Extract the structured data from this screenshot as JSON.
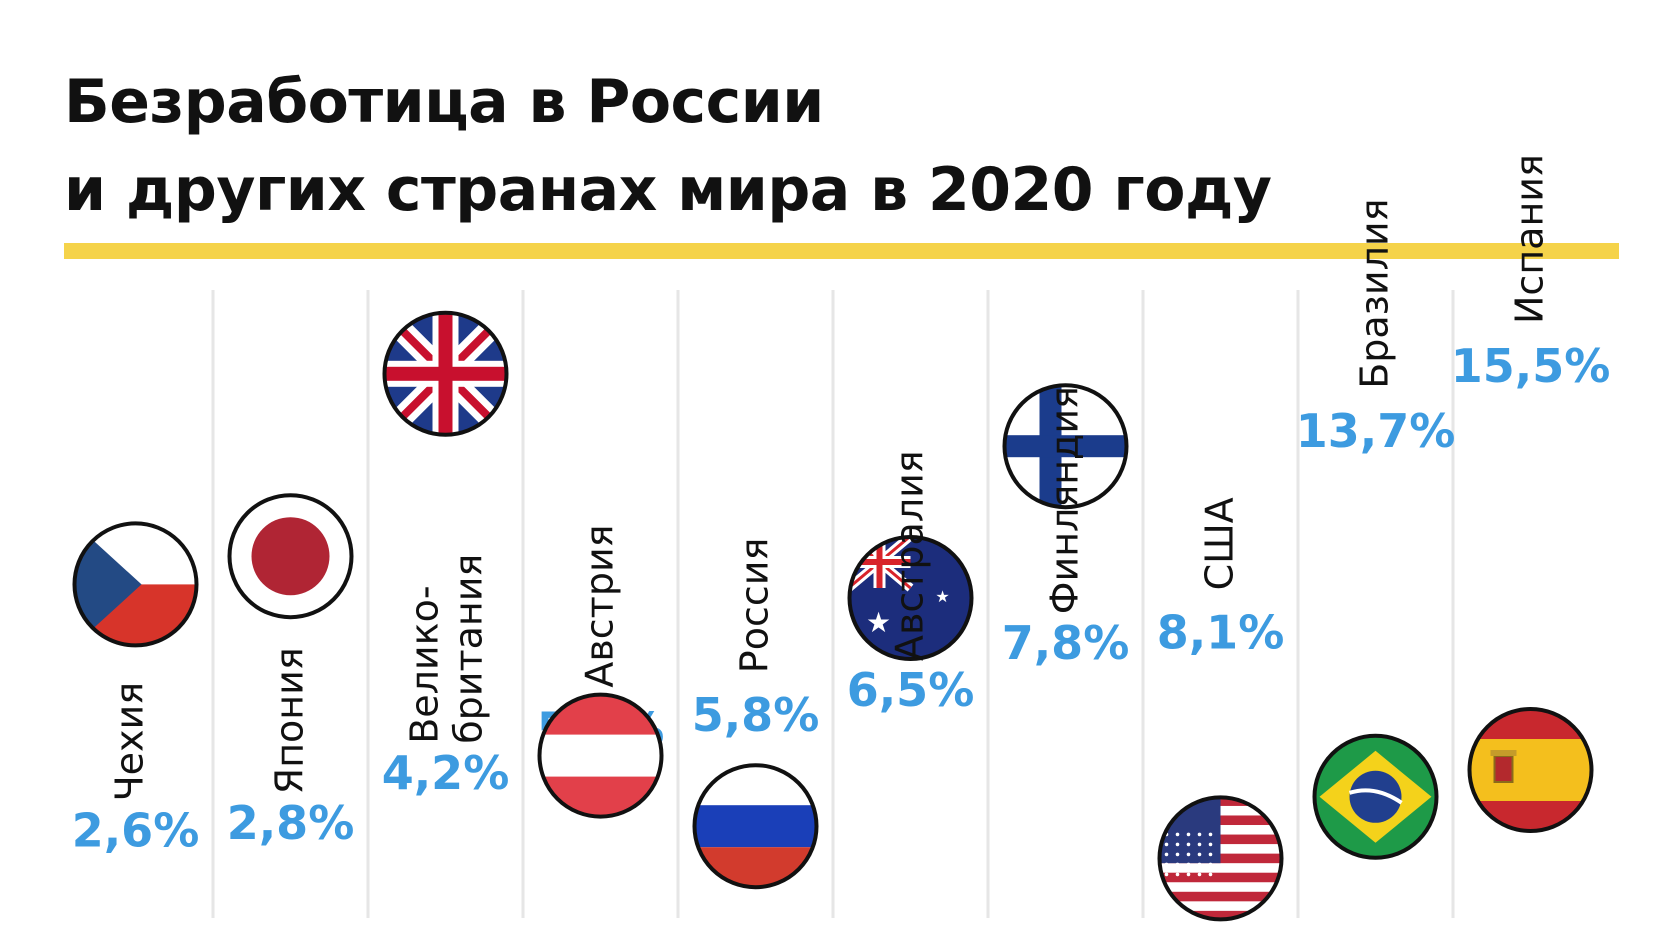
{
  "title": {
    "line1": "Безработица в России",
    "line2": "и других странах мира в 2020 году"
  },
  "colors": {
    "accent": "#F5D34A",
    "value": "#3D9BE0",
    "text": "#111111"
  },
  "chart_data": {
    "type": "bar",
    "title": "Безработица в России и других странах мира в 2020 году",
    "unit": "%",
    "categories": [
      "Чехия",
      "Япония",
      "Велико-британия",
      "Австрия",
      "Россия",
      "Австралия",
      "Финляндия",
      "США",
      "Бразилия",
      "Испания"
    ],
    "label_lines": [
      [
        "Чехия"
      ],
      [
        "Япония"
      ],
      [
        "Велико-",
        "британия"
      ],
      [
        "Австрия"
      ],
      [
        "Россия"
      ],
      [
        "Австралия"
      ],
      [
        "Финляндия"
      ],
      [
        "США"
      ],
      [
        "Бразилия"
      ],
      [
        "Испания"
      ]
    ],
    "values": [
      2.6,
      2.8,
      4.2,
      5.4,
      5.8,
      6.5,
      7.8,
      8.1,
      13.7,
      15.5
    ],
    "value_labels": [
      "2,6%",
      "2,8%",
      "4,2%",
      "5,4%",
      "5,8%",
      "6,5%",
      "7,8%",
      "8,1%",
      "13,7%",
      "15,5%"
    ],
    "flags": [
      "czech-flag",
      "japan-flag",
      "uk-flag",
      "austria-flag",
      "russia-flag",
      "australia-flag",
      "finland-flag",
      "usa-flag",
      "brazil-flag",
      "spain-flag"
    ]
  }
}
